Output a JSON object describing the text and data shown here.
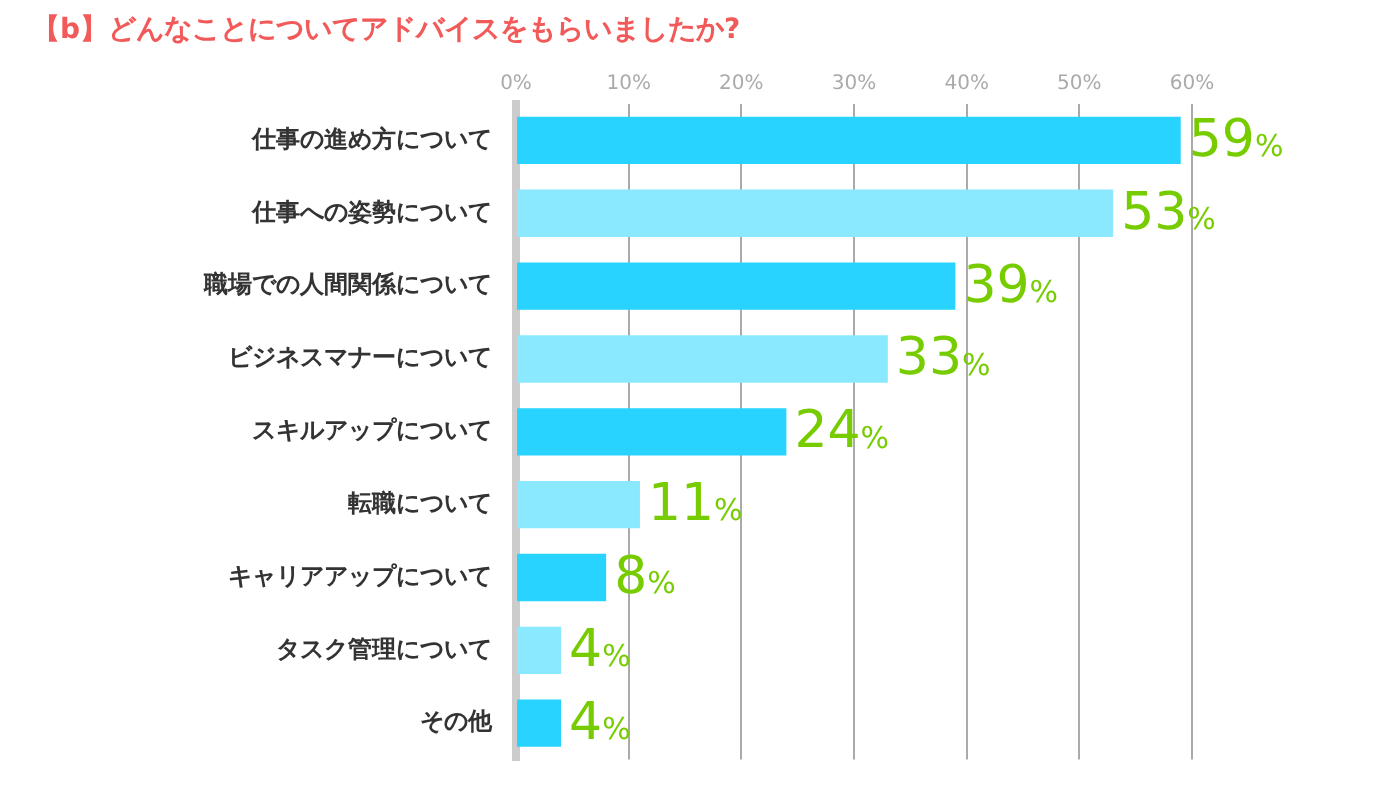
{
  "chart_data": {
    "type": "bar",
    "orientation": "horizontal",
    "title": "【b】どんなことについてアドバイスをもらいましたか?",
    "categories": [
      "仕事の進め方について",
      "仕事への姿勢について",
      "職場での人間関係について",
      "ビジネスマナーについて",
      "スキルアップについて",
      "転職について",
      "キャリアアップについて",
      "タスク管理について",
      "その他"
    ],
    "values": [
      59,
      53,
      39,
      33,
      24,
      11,
      8,
      4,
      4
    ],
    "colors": [
      "#29d3ff",
      "#8ae8ff",
      "#29d3ff",
      "#8ae8ff",
      "#29d3ff",
      "#8ae8ff",
      "#29d3ff",
      "#8ae8ff",
      "#29d3ff"
    ],
    "value_labels": [
      "59%",
      "53%",
      "39%",
      "33%",
      "24%",
      "11%",
      "8%",
      "4%",
      "4%"
    ],
    "xlim": [
      0,
      60
    ],
    "xticks": [
      {
        "value": 0,
        "label": "0%"
      },
      {
        "value": 10,
        "label": "10%"
      },
      {
        "value": 20,
        "label": "20%"
      },
      {
        "value": 30,
        "label": "30%"
      },
      {
        "value": 40,
        "label": "40%"
      },
      {
        "value": 50,
        "label": "50%"
      },
      {
        "value": 60,
        "label": "60%"
      }
    ],
    "grid": "x",
    "legend": false
  }
}
